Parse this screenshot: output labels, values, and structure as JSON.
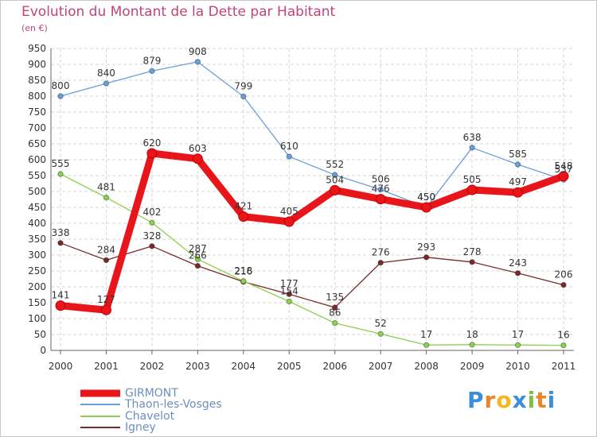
{
  "title": "Evolution du Montant de la Dette par Habitant",
  "unit": "(en €)",
  "logo": {
    "letters": [
      "P",
      "r",
      "o",
      "x",
      "i",
      "t",
      "i"
    ],
    "colors": [
      "#3a8fd8",
      "#e8862a",
      "#f2b81e",
      "#3a8fd8",
      "#7ac142",
      "#e8862a",
      "#3a8fd8"
    ]
  },
  "chart_data": {
    "type": "line",
    "x": [
      "2000",
      "2001",
      "2002",
      "2003",
      "2004",
      "2005",
      "2006",
      "2007",
      "2008",
      "2009",
      "2010",
      "2011"
    ],
    "ylim": [
      0,
      950
    ],
    "yticks": [
      "0",
      "50",
      "100",
      "150",
      "200",
      "250",
      "300",
      "350",
      "400",
      "450",
      "500",
      "550",
      "600",
      "650",
      "700",
      "750",
      "800",
      "850",
      "900",
      "950"
    ],
    "grid": true,
    "legend_position": "bottom-left",
    "series": [
      {
        "name": "GIRMONT",
        "color": "#e8161b",
        "values": [
          141,
          127,
          620,
          603,
          421,
          405,
          504,
          476,
          450,
          505,
          497,
          548
        ]
      },
      {
        "name": "Thaon-les-Vosges",
        "color": "#6a9fd8",
        "values": [
          800,
          840,
          879,
          908,
          799,
          610,
          552,
          506,
          450,
          638,
          585,
          537
        ]
      },
      {
        "name": "Chavelot",
        "color": "#8bd14f",
        "values": [
          555,
          481,
          402,
          287,
          218,
          154,
          86,
          52,
          17,
          18,
          17,
          16
        ]
      },
      {
        "name": "Igney",
        "color": "#7b2a2a",
        "values": [
          338,
          284,
          328,
          266,
          216,
          177,
          135,
          276,
          293,
          278,
          243,
          206
        ]
      }
    ]
  }
}
